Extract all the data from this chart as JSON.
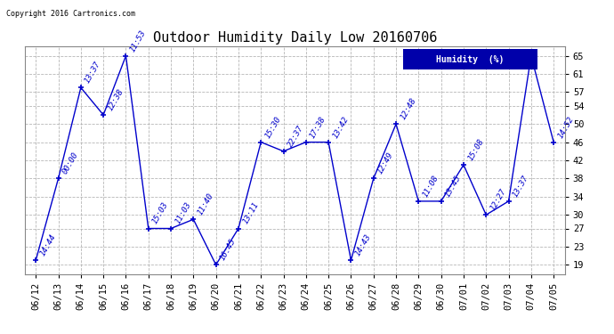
{
  "title": "Outdoor Humidity Daily Low 20160706",
  "copyright": "Copyright 2016 Cartronics.com",
  "legend_label": "Humidity  (%)",
  "dates": [
    "06/12",
    "06/13",
    "06/14",
    "06/15",
    "06/16",
    "06/17",
    "06/18",
    "06/19",
    "06/20",
    "06/21",
    "06/22",
    "06/23",
    "06/24",
    "06/25",
    "06/26",
    "06/27",
    "06/28",
    "06/29",
    "06/30",
    "07/01",
    "07/02",
    "07/03",
    "07/04",
    "07/05"
  ],
  "values": [
    20,
    38,
    58,
    52,
    65,
    27,
    27,
    29,
    19,
    27,
    46,
    44,
    46,
    46,
    20,
    38,
    50,
    33,
    33,
    41,
    30,
    33,
    65,
    46
  ],
  "times": [
    "14:44",
    "00:00",
    "13:37",
    "12:38",
    "11:53",
    "15:03",
    "11:03",
    "11:40",
    "16:45",
    "13:11",
    "15:30",
    "22:37",
    "17:38",
    "13:42",
    "14:43",
    "12:49",
    "12:48",
    "11:08",
    "13:45",
    "15:08",
    "12:27",
    "13:37",
    "",
    "14:52"
  ],
  "line_color": "#0000cc",
  "marker_color": "#0000cc",
  "background_color": "#ffffff",
  "grid_color": "#aaaaaa",
  "title_color": "#000000",
  "yticks": [
    19,
    23,
    27,
    30,
    34,
    38,
    42,
    46,
    50,
    54,
    57,
    61,
    65
  ],
  "ylim": [
    17,
    67
  ],
  "legend_bg": "#0000aa",
  "legend_fg": "#ffffff",
  "font_family": "monospace",
  "title_fontsize": 11,
  "annot_fontsize": 6.5,
  "tick_fontsize": 7.5
}
